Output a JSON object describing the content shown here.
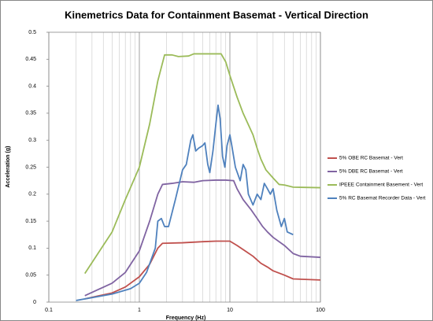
{
  "chart_data": {
    "type": "line",
    "title": "Kinemetrics Data for Containment Basemat - Vertical Direction",
    "xlabel": "Frequency (Hz)",
    "ylabel": "Acceleration (g)",
    "xscale": "log",
    "xlim": [
      0.1,
      100
    ],
    "xticks": [
      0.1,
      1,
      10,
      100
    ],
    "xminor_ticks": [
      0.2,
      0.3,
      0.4,
      0.5,
      0.6,
      0.7,
      0.8,
      0.9,
      2,
      3,
      4,
      5,
      6,
      7,
      8,
      9,
      20,
      30,
      40,
      50,
      60,
      70,
      80,
      90
    ],
    "ylim": [
      0,
      0.5
    ],
    "yticks": [
      0,
      0.05,
      0.1,
      0.15,
      0.2,
      0.25,
      0.3,
      0.35,
      0.4,
      0.45,
      0.5
    ],
    "grid": "x",
    "legend": "right",
    "series": [
      {
        "name": "5% OBE RC Basemat - Vert",
        "color": "#c0504d",
        "x": [
          0.25,
          0.5,
          0.7,
          1,
          1.3,
          1.6,
          1.8,
          3,
          5,
          7,
          10,
          12,
          15,
          18,
          22,
          26,
          30,
          40,
          50,
          100
        ],
        "values": [
          0.006,
          0.017,
          0.028,
          0.047,
          0.07,
          0.1,
          0.109,
          0.11,
          0.112,
          0.113,
          0.113,
          0.105,
          0.094,
          0.085,
          0.072,
          0.065,
          0.058,
          0.05,
          0.043,
          0.041
        ]
      },
      {
        "name": "5% DBE RC Basemat - Vert",
        "color": "#8064a2",
        "x": [
          0.25,
          0.5,
          0.7,
          1,
          1.3,
          1.6,
          1.8,
          2.3,
          3,
          4,
          5,
          7,
          9,
          11,
          12,
          14,
          17,
          20,
          23,
          26,
          30,
          40,
          50,
          60,
          100
        ],
        "values": [
          0.012,
          0.035,
          0.055,
          0.095,
          0.15,
          0.2,
          0.218,
          0.22,
          0.223,
          0.222,
          0.225,
          0.226,
          0.226,
          0.225,
          0.21,
          0.19,
          0.172,
          0.155,
          0.14,
          0.13,
          0.12,
          0.105,
          0.09,
          0.085,
          0.083
        ]
      },
      {
        "name": "IPEEE Containment Basement - Vert",
        "color": "#9bbb59",
        "x": [
          0.25,
          0.5,
          0.7,
          1,
          1.3,
          1.6,
          1.9,
          2.3,
          2.7,
          3.5,
          4,
          6,
          8,
          9,
          10,
          12,
          14,
          18,
          20,
          22,
          25,
          30,
          35,
          40,
          50,
          100
        ],
        "values": [
          0.053,
          0.13,
          0.19,
          0.25,
          0.33,
          0.41,
          0.458,
          0.458,
          0.455,
          0.456,
          0.46,
          0.46,
          0.46,
          0.445,
          0.42,
          0.38,
          0.35,
          0.31,
          0.285,
          0.265,
          0.245,
          0.23,
          0.218,
          0.217,
          0.213,
          0.212
        ]
      },
      {
        "name": "5% RC Basemat Recorder Data - Vert",
        "color": "#4f81bd",
        "x": [
          0.2,
          0.5,
          0.8,
          1,
          1.2,
          1.5,
          1.6,
          1.75,
          1.9,
          2.1,
          2.5,
          3,
          3.3,
          3.7,
          3.9,
          4.2,
          4.5,
          5,
          5.3,
          5.7,
          6,
          6.5,
          7,
          7.4,
          7.8,
          8.3,
          8.8,
          9.3,
          10,
          10.5,
          11.5,
          13,
          14,
          15,
          16,
          18,
          20,
          22,
          24,
          26,
          28,
          30,
          33,
          37,
          40,
          43,
          50
        ],
        "values": [
          0.003,
          0.015,
          0.025,
          0.035,
          0.055,
          0.1,
          0.15,
          0.155,
          0.14,
          0.14,
          0.19,
          0.245,
          0.255,
          0.3,
          0.31,
          0.28,
          0.285,
          0.29,
          0.295,
          0.255,
          0.24,
          0.28,
          0.33,
          0.365,
          0.34,
          0.27,
          0.25,
          0.29,
          0.31,
          0.29,
          0.25,
          0.225,
          0.255,
          0.245,
          0.2,
          0.18,
          0.2,
          0.19,
          0.22,
          0.21,
          0.2,
          0.21,
          0.17,
          0.14,
          0.155,
          0.13,
          0.125
        ]
      }
    ]
  }
}
